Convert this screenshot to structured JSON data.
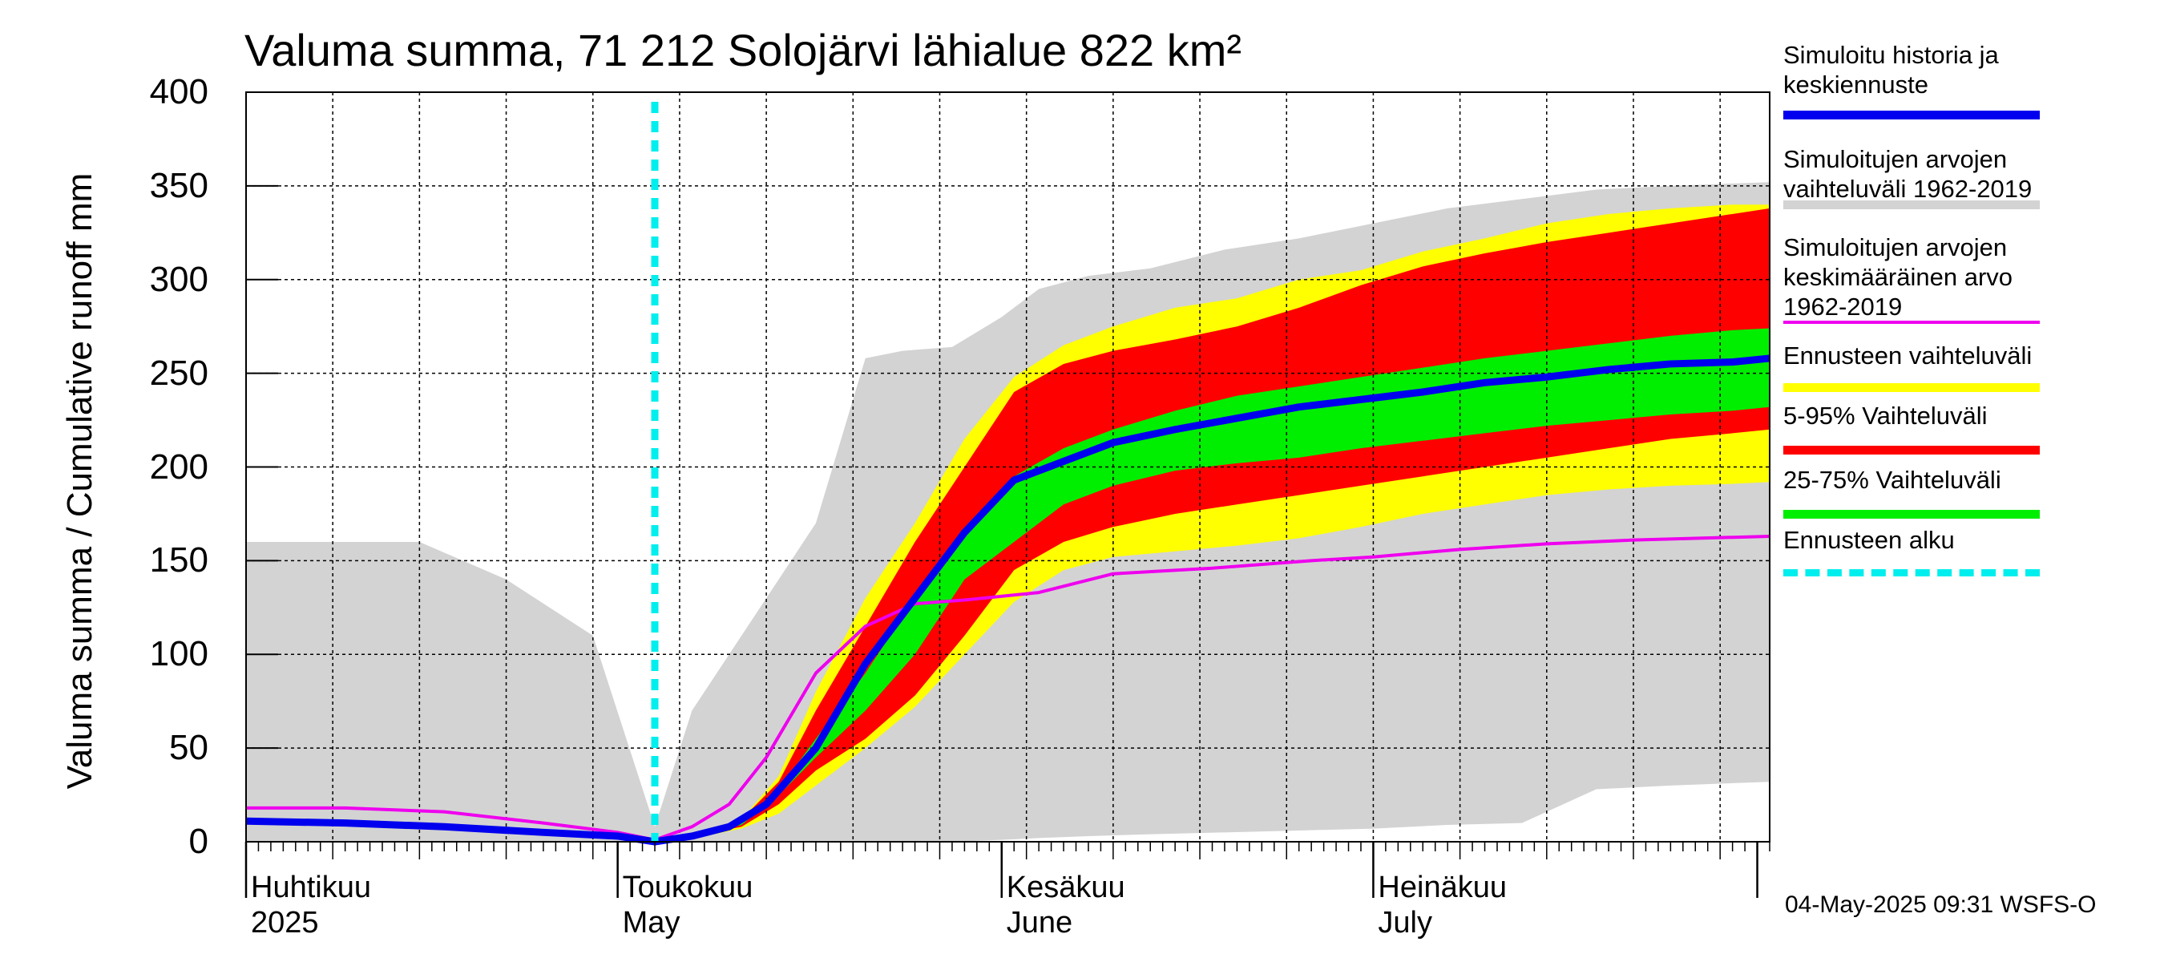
{
  "title": "Valuma summa, 71 212 Solojärvi lähialue 822 km²",
  "ylabel": "Valuma summa / Cumulative runoff     mm",
  "yticks": [
    "0",
    "50",
    "100",
    "150",
    "200",
    "250",
    "300",
    "350",
    "400"
  ],
  "months": [
    {
      "fi": "Huhtikuu",
      "en": "2025"
    },
    {
      "fi": "Toukokuu",
      "en": "May"
    },
    {
      "fi": "Kesäkuu",
      "en": "June"
    },
    {
      "fi": "Heinäkuu",
      "en": "July"
    }
  ],
  "legend": [
    {
      "label": "Simuloitu historia ja\nkeskiennuste",
      "color": "#0000ee",
      "style": "line"
    },
    {
      "label": "Simuloitujen arvojen\nvaihteluväli 1962-2019",
      "color": "#d3d3d3",
      "style": "line"
    },
    {
      "label": "Simuloitujen arvojen\nkeskimääräinen arvo\n   1962-2019",
      "color": "#ee00ee",
      "style": "thin"
    },
    {
      "label": "Ennusteen vaihteluväli",
      "color": "#ffff00",
      "style": "line"
    },
    {
      "label": "5-95% Vaihteluväli",
      "color": "#ff0000",
      "style": "line"
    },
    {
      "label": "25-75% Vaihteluväli",
      "color": "#00ee00",
      "style": "line"
    },
    {
      "label": "Ennusteen alku",
      "color": "#00eeee",
      "style": "dash"
    }
  ],
  "footer": "04-May-2025 09:31 WSFS-O",
  "chart_data": {
    "type": "area",
    "title": "Valuma summa, 71 212 Solojärvi lähialue 822 km²",
    "ylabel": "Valuma summa / Cumulative runoff     mm",
    "ylim": [
      0,
      400
    ],
    "x_unit": "day (0 = 1 April 2025)",
    "xlim": [
      0,
      123
    ],
    "forecast_start_day": 33,
    "grid": true,
    "series": [
      {
        "name": "Simuloitujen arvojen vaihteluväli 1962-2019",
        "kind": "band",
        "color": "#d3d3d3",
        "x": [
          0,
          14,
          21,
          28,
          33,
          36,
          39,
          43,
          46,
          50,
          53,
          57,
          61,
          64,
          68,
          73,
          79,
          85,
          91,
          97,
          103,
          109,
          115,
          123
        ],
        "lower": [
          0,
          0,
          0,
          0,
          0,
          0,
          0,
          0,
          0,
          0,
          0,
          0,
          1,
          2,
          3,
          4,
          5,
          6,
          7,
          9,
          10,
          28,
          30,
          32
        ],
        "upper": [
          160,
          160,
          140,
          110,
          8,
          70,
          100,
          140,
          170,
          258,
          262,
          264,
          280,
          295,
          302,
          306,
          316,
          322,
          330,
          338,
          343,
          348,
          350,
          352
        ]
      },
      {
        "name": "Ennusteen vaihteluväli",
        "kind": "band",
        "color": "#ffff00",
        "x": [
          33,
          37,
          40,
          43,
          46,
          50,
          54,
          58,
          62,
          66,
          70,
          75,
          80,
          85,
          90,
          95,
          100,
          105,
          110,
          115,
          120,
          123
        ],
        "lower": [
          0,
          3,
          7,
          15,
          30,
          50,
          72,
          100,
          128,
          145,
          152,
          155,
          158,
          162,
          168,
          175,
          180,
          185,
          188,
          190,
          191,
          192
        ],
        "upper": [
          0,
          5,
          12,
          35,
          80,
          130,
          170,
          215,
          248,
          265,
          275,
          285,
          290,
          300,
          305,
          315,
          322,
          330,
          335,
          338,
          340,
          340
        ]
      },
      {
        "name": "5-95% Vaihteluväli",
        "kind": "band",
        "color": "#ff0000",
        "x": [
          33,
          37,
          40,
          43,
          46,
          50,
          54,
          58,
          62,
          66,
          70,
          75,
          80,
          85,
          90,
          95,
          100,
          105,
          110,
          115,
          120,
          123
        ],
        "lower": [
          0,
          4,
          8,
          20,
          38,
          55,
          78,
          110,
          145,
          160,
          168,
          175,
          180,
          185,
          190,
          195,
          200,
          205,
          210,
          215,
          218,
          220
        ],
        "upper": [
          0,
          5,
          12,
          32,
          70,
          115,
          160,
          200,
          240,
          255,
          262,
          268,
          275,
          285,
          297,
          307,
          314,
          320,
          325,
          330,
          335,
          338
        ]
      },
      {
        "name": "25-75% Vaihteluväli",
        "kind": "band",
        "color": "#00ee00",
        "x": [
          33,
          37,
          40,
          43,
          46,
          50,
          54,
          58,
          62,
          66,
          70,
          75,
          80,
          85,
          90,
          95,
          100,
          105,
          110,
          115,
          120,
          123
        ],
        "lower": [
          0,
          4,
          9,
          25,
          45,
          70,
          100,
          140,
          160,
          180,
          190,
          198,
          202,
          205,
          210,
          214,
          218,
          222,
          225,
          228,
          230,
          232
        ],
        "upper": [
          0,
          5,
          11,
          28,
          55,
          90,
          130,
          165,
          195,
          210,
          220,
          230,
          238,
          243,
          248,
          253,
          258,
          262,
          266,
          270,
          273,
          274
        ]
      },
      {
        "name": "Simuloitujen arvojen keskimääräinen arvo 1962-2019",
        "kind": "line",
        "color": "#ee00ee",
        "x": [
          0,
          8,
          16,
          24,
          30,
          33,
          36,
          39,
          42,
          46,
          50,
          54,
          58,
          64,
          70,
          78,
          86,
          91,
          98,
          105,
          112,
          123
        ],
        "y": [
          18,
          18,
          16,
          10,
          5,
          1,
          8,
          20,
          45,
          90,
          115,
          127,
          129,
          133,
          143,
          146,
          150,
          152,
          156,
          159,
          161,
          163
        ]
      },
      {
        "name": "Simuloitu historia ja keskiennuste",
        "kind": "line",
        "color": "#0000ee",
        "x": [
          0,
          8,
          16,
          24,
          30,
          33,
          36,
          39,
          42,
          46,
          50,
          54,
          58,
          62,
          66,
          70,
          75,
          80,
          85,
          90,
          95,
          100,
          105,
          110,
          115,
          120,
          123
        ],
        "y": [
          11,
          10,
          8,
          5,
          3,
          0,
          3,
          8,
          20,
          50,
          95,
          130,
          165,
          193,
          203,
          213,
          220,
          226,
          232,
          236,
          240,
          245,
          248,
          252,
          255,
          256,
          258
        ]
      }
    ]
  }
}
